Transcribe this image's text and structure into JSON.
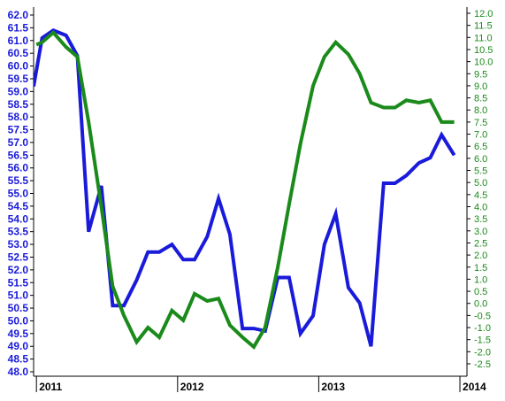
{
  "chart_data": {
    "type": "line",
    "grid": false,
    "legend": "none",
    "colors": {
      "left_series": "#1a1adb",
      "right_series": "#1a8a1a",
      "left_axis_text": "#1a1adb",
      "right_axis_text": "#1a8a1a",
      "axis": "#000000"
    },
    "x_axis": {
      "range": [
        2010.98,
        2014.05
      ],
      "ticks": [
        {
          "value": 2011,
          "label": "2011"
        },
        {
          "value": 2012,
          "label": "2012"
        },
        {
          "value": 2013,
          "label": "2013"
        },
        {
          "value": 2014,
          "label": "2014"
        }
      ]
    },
    "y_left": {
      "range": [
        48.0,
        62.5
      ],
      "ticks": [
        "62.0",
        "61.5",
        "61.0",
        "60.5",
        "60.0",
        "59.5",
        "59.0",
        "58.5",
        "58.0",
        "57.5",
        "57.0",
        "56.5",
        "56.0",
        "55.5",
        "55.0",
        "54.5",
        "54.0",
        "53.5",
        "53.0",
        "52.5",
        "52.0",
        "51.5",
        "51.0",
        "50.5",
        "50.0",
        "49.5",
        "49.0",
        "48.5",
        "48.0"
      ]
    },
    "y_right": {
      "range": [
        -2.75,
        12.25
      ],
      "ticks": [
        "12.0",
        "11.5",
        "11.0",
        "10.5",
        "10.0",
        "9.5",
        "9.0",
        "8.5",
        "8.0",
        "7.5",
        "7.0",
        "6.5",
        "6.0",
        "5.5",
        "5.0",
        "4.5",
        "4.0",
        "3.5",
        "3.0",
        "2.5",
        "2.0",
        "1.5",
        "1.0",
        "0.5",
        "0.0",
        "-0.5",
        "-1.0",
        "-1.5",
        "-2.0",
        "-2.5"
      ]
    },
    "series": [
      {
        "axis": "left",
        "x": [
          2010.98,
          2011.04,
          2011.12,
          2011.21,
          2011.29,
          2011.37,
          2011.46,
          2011.54,
          2011.62,
          2011.71,
          2011.79,
          2011.87,
          2011.96,
          2012.04,
          2012.12,
          2012.21,
          2012.29,
          2012.37,
          2012.46,
          2012.54,
          2012.62,
          2012.71,
          2012.79,
          2012.87,
          2012.96,
          2013.04,
          2013.12,
          2013.21,
          2013.29,
          2013.37,
          2013.46,
          2013.54,
          2013.62,
          2013.71,
          2013.79,
          2013.87,
          2013.96
        ],
        "values": [
          59.2,
          61.1,
          61.4,
          61.2,
          60.4,
          53.5,
          55.3,
          50.6,
          50.6,
          51.6,
          52.7,
          52.7,
          53.0,
          52.4,
          52.4,
          53.3,
          54.8,
          53.4,
          49.7,
          49.7,
          49.6,
          51.7,
          51.7,
          49.5,
          50.2,
          53.0,
          54.2,
          51.3,
          50.7,
          49.0,
          55.4,
          55.4,
          55.7,
          56.2,
          56.4,
          57.3,
          56.5
        ]
      },
      {
        "axis": "right",
        "x": [
          2011.0,
          2011.04,
          2011.12,
          2011.21,
          2011.29,
          2011.37,
          2011.46,
          2011.54,
          2011.62,
          2011.71,
          2011.79,
          2011.87,
          2011.96,
          2012.04,
          2012.12,
          2012.21,
          2012.29,
          2012.37,
          2012.46,
          2012.54,
          2012.62,
          2012.71,
          2012.79,
          2012.87,
          2012.96,
          2013.04,
          2013.12,
          2013.21,
          2013.29,
          2013.37,
          2013.46,
          2013.54,
          2013.62,
          2013.71,
          2013.79,
          2013.87,
          2013.96
        ],
        "values": [
          10.7,
          10.8,
          11.2,
          10.6,
          10.2,
          7.5,
          4.0,
          0.7,
          -0.5,
          -1.6,
          -1.0,
          -1.4,
          -0.3,
          -0.7,
          0.4,
          0.1,
          0.2,
          -0.9,
          -1.4,
          -1.8,
          -1.0,
          1.5,
          4.1,
          6.6,
          9.0,
          10.2,
          10.8,
          10.3,
          9.5,
          8.3,
          8.1,
          8.1,
          8.4,
          8.3,
          8.4,
          7.5,
          7.5
        ]
      }
    ]
  }
}
